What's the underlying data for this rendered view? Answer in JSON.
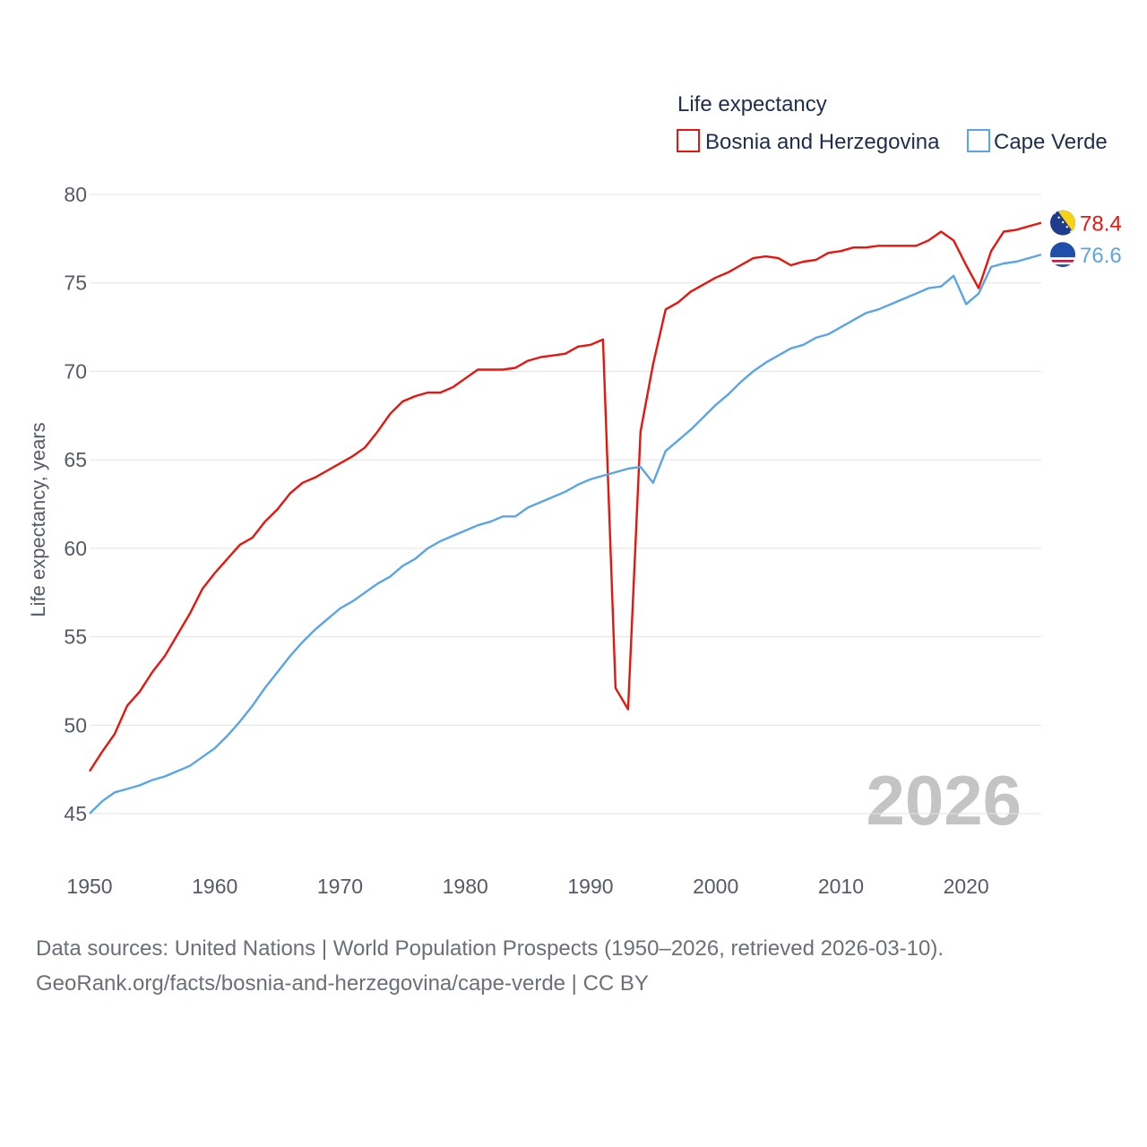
{
  "chart_data": {
    "type": "line",
    "legend_title": "Life expectancy",
    "ylabel": "Life expectancy, years",
    "xlabel": "",
    "xlim": [
      1950,
      2026
    ],
    "ylim": [
      43,
      80
    ],
    "x_ticks": [
      1950,
      1960,
      1970,
      1980,
      1990,
      2000,
      2010,
      2020
    ],
    "y_ticks": [
      45,
      50,
      55,
      60,
      65,
      70,
      75,
      80
    ],
    "current_year": "2026",
    "x": [
      1950,
      1951,
      1952,
      1953,
      1954,
      1955,
      1956,
      1957,
      1958,
      1959,
      1960,
      1961,
      1962,
      1963,
      1964,
      1965,
      1966,
      1967,
      1968,
      1969,
      1970,
      1971,
      1972,
      1973,
      1974,
      1975,
      1976,
      1977,
      1978,
      1979,
      1980,
      1981,
      1982,
      1983,
      1984,
      1985,
      1986,
      1987,
      1988,
      1989,
      1990,
      1991,
      1992,
      1993,
      1994,
      1995,
      1996,
      1997,
      1998,
      1999,
      2000,
      2001,
      2002,
      2003,
      2004,
      2005,
      2006,
      2007,
      2008,
      2009,
      2010,
      2011,
      2012,
      2013,
      2014,
      2015,
      2016,
      2017,
      2018,
      2019,
      2020,
      2021,
      2022,
      2023,
      2024,
      2025,
      2026
    ],
    "series": [
      {
        "name": "Bosnia and Herzegovina",
        "color": "#e8150e",
        "end_label": "78.4",
        "flag_icon": "bosnia-flag-icon",
        "values": [
          47.4,
          48.5,
          49.5,
          51.1,
          51.9,
          53.0,
          53.9,
          55.1,
          56.3,
          57.7,
          58.6,
          59.4,
          60.2,
          60.6,
          61.5,
          62.2,
          63.1,
          63.7,
          64.0,
          64.4,
          64.8,
          65.2,
          65.7,
          66.6,
          67.6,
          68.3,
          68.6,
          68.8,
          68.8,
          69.1,
          69.6,
          70.1,
          70.1,
          70.1,
          70.2,
          70.6,
          70.8,
          70.9,
          71.0,
          71.4,
          71.5,
          71.8,
          52.1,
          50.9,
          66.6,
          70.4,
          73.5,
          73.9,
          74.5,
          74.9,
          75.3,
          75.6,
          76.0,
          76.4,
          76.5,
          76.4,
          76.0,
          76.2,
          76.3,
          76.7,
          76.8,
          77.0,
          77.0,
          77.1,
          77.1,
          77.1,
          77.1,
          77.4,
          77.9,
          77.4,
          76.0,
          74.7,
          76.8,
          77.9,
          78.0,
          78.2,
          78.4
        ]
      },
      {
        "name": "Cape Verde",
        "color": "#5aa5e6",
        "end_label": "76.6",
        "flag_icon": "cape-verde-flag-icon",
        "values": [
          45.0,
          45.7,
          46.2,
          46.4,
          46.6,
          46.9,
          47.1,
          47.4,
          47.7,
          48.2,
          48.7,
          49.4,
          50.2,
          51.1,
          52.1,
          53.0,
          53.9,
          54.7,
          55.4,
          56.0,
          56.6,
          57.0,
          57.5,
          58.0,
          58.4,
          59.0,
          59.4,
          60.0,
          60.4,
          60.7,
          61.0,
          61.3,
          61.5,
          61.8,
          61.8,
          62.3,
          62.6,
          62.9,
          63.2,
          63.6,
          63.9,
          64.1,
          64.3,
          64.5,
          64.6,
          63.7,
          65.5,
          66.1,
          66.7,
          67.4,
          68.1,
          68.7,
          69.4,
          70.0,
          70.5,
          70.9,
          71.3,
          71.5,
          71.9,
          72.1,
          72.5,
          72.9,
          73.3,
          73.5,
          73.8,
          74.1,
          74.4,
          74.7,
          74.8,
          75.4,
          73.8,
          74.4,
          75.9,
          76.1,
          76.2,
          76.4,
          76.6
        ]
      }
    ]
  },
  "sources": {
    "line1": "Data sources: United Nations | World Population Prospects (1950–2026, retrieved 2026-03-10).",
    "line2": "GeoRank.org/facts/bosnia-and-herzegovina/cape-verde | CC BY"
  }
}
